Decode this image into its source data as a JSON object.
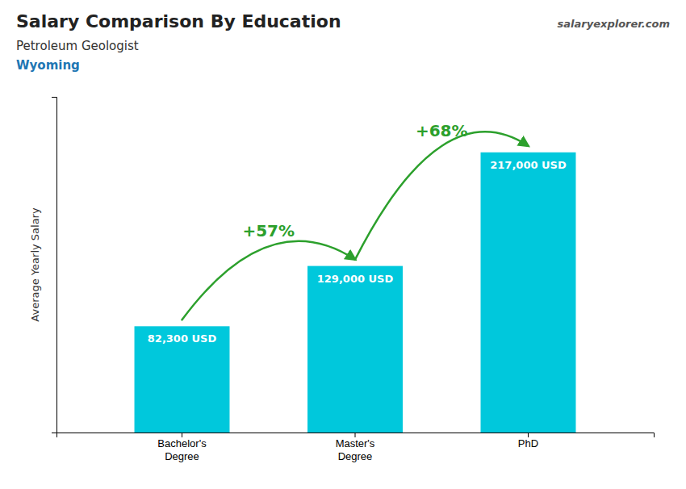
{
  "chart_data": {
    "type": "bar",
    "title": "Salary Comparison By Education",
    "subtitle": "Petroleum Geologist",
    "y_label": "Average Yearly Salary",
    "annotations": [
      "Wyoming",
      "+57%",
      "+68%",
      "salaryexplorer.com"
    ],
    "categories": [
      "Bachelor's\nDegree",
      "Master's\nDegree",
      "PhD"
    ],
    "values": [
      82300,
      129000,
      217000
    ],
    "value_labels": [
      "82,300 USD",
      "129,000 USD",
      "217,000 USD"
    ],
    "data_labels": true,
    "color": "#00c8dc",
    "ylim": [
      0,
      260000
    ],
    "grid": false,
    "tick_labels": "x"
  }
}
